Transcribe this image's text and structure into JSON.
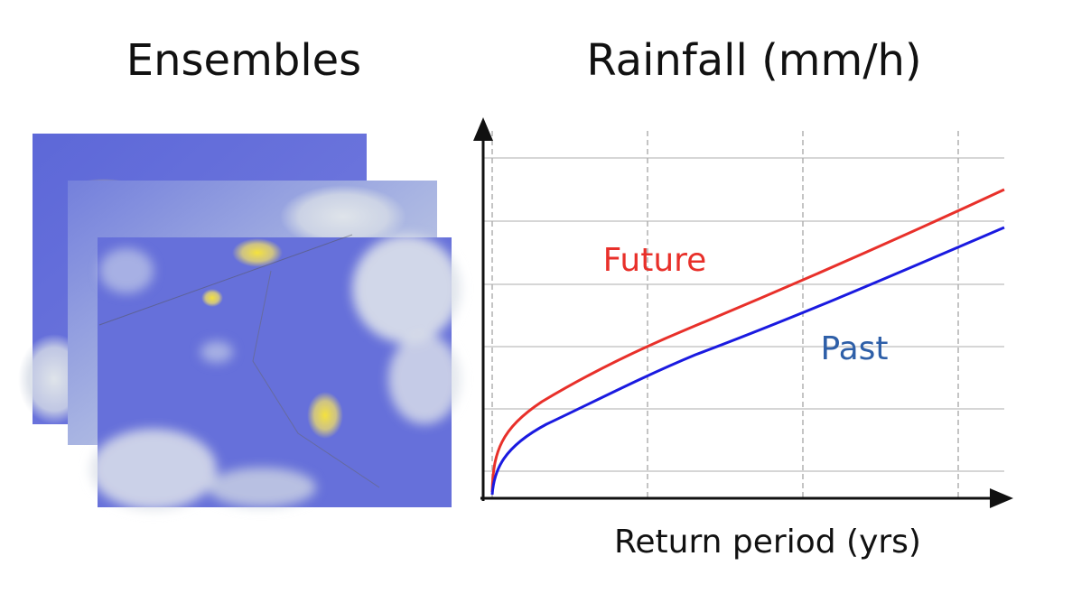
{
  "ensembles": {
    "title": "Ensembles"
  },
  "chart": {
    "title": "Rainfall (mm/h)",
    "x_label": "Return period (yrs)",
    "curves": [
      {
        "label": "Future",
        "color": "#e8302a"
      },
      {
        "label": "Past",
        "color": "#1a1ae0"
      }
    ]
  }
}
